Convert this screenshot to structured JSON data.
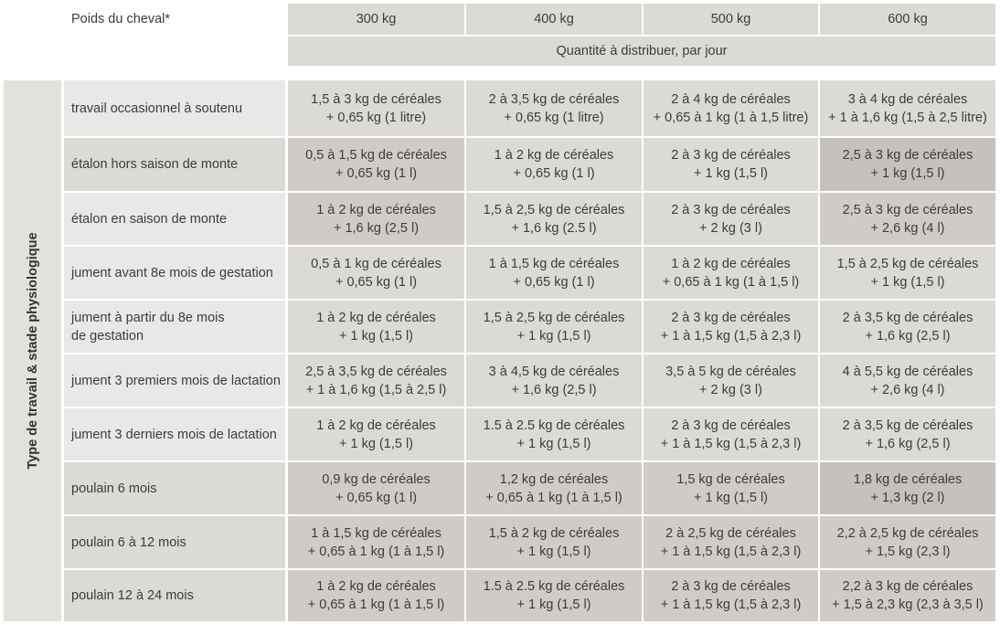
{
  "header": {
    "weight_label": "Poids du cheval*",
    "weights": [
      "300 kg",
      "400 kg",
      "500 kg",
      "600 kg"
    ],
    "quantity_label": "Quantité à distribuer, par jour"
  },
  "sidebar_label": "Type de travail & stade physiologique",
  "rows": [
    {
      "label": "travail occasionnel à soutenu",
      "cells": [
        {
          "l1": "1,5 à 3 kg de céréales",
          "l2": "+ 0,65 kg (1 litre)"
        },
        {
          "l1": "2 à 3,5 kg de céréales",
          "l2": "+ 0,65 kg (1 litre)"
        },
        {
          "l1": "2 à 4 kg de céréales",
          "l2": "+ 0,65 à 1 kg (1 à 1,5 litre)"
        },
        {
          "l1": "3 à 4 kg de céréales",
          "l2": "+ 1 à 1,6 kg (1,5 à 2,5 litre)"
        }
      ]
    },
    {
      "label": "étalon hors saison de monte",
      "cells": [
        {
          "l1": "0,5 à 1,5 kg de céréales",
          "l2": "+ 0,65 kg (1 l)"
        },
        {
          "l1": "1 à 2 kg de céréales",
          "l2": "+ 0,65 kg (1 l)"
        },
        {
          "l1": "2 à 3 kg de céréales",
          "l2": "+ 1 kg (1,5 l)"
        },
        {
          "l1": "2,5 à 3 kg de céréales",
          "l2": "+ 1 kg (1,5 l)"
        }
      ]
    },
    {
      "label": "étalon en saison de monte",
      "cells": [
        {
          "l1": "1 à 2 kg de céréales",
          "l2": "+ 1,6 kg (2,5 l)"
        },
        {
          "l1": "1,5 à 2,5 kg de céréales",
          "l2": "+ 1,6 kg (2.5 l)"
        },
        {
          "l1": "2 à 3 kg de céréales",
          "l2": "+ 2 kg (3 l)"
        },
        {
          "l1": "2,5 à 3 kg de céréales",
          "l2": "+ 2,6 kg (4 l)"
        }
      ]
    },
    {
      "label": "jument avant 8e mois de gestation",
      "cells": [
        {
          "l1": "0,5 à 1 kg de céréales",
          "l2": "+ 0,65 kg (1 l)"
        },
        {
          "l1": "1 à 1,5 kg de céréales",
          "l2": "+ 0,65 kg (1 l)"
        },
        {
          "l1": "1 à 2 kg de céréales",
          "l2": "+ 0,65 à 1 kg (1 à 1,5 l)"
        },
        {
          "l1": "1,5 à 2,5 kg de céréales",
          "l2": "+ 1 kg (1,5 l)"
        }
      ]
    },
    {
      "label": "jument à partir du 8e mois",
      "label2": "de gestation",
      "cells": [
        {
          "l1": "1 à 2 kg de céréales",
          "l2": "+ 1 kg (1,5 l)"
        },
        {
          "l1": "1,5 à 2,5 kg de céréales",
          "l2": "+ 1 kg (1,5 l)"
        },
        {
          "l1": "2 à 3 kg de céréales",
          "l2": "+ 1 à 1,5 kg (1,5 à 2,3 l)"
        },
        {
          "l1": "2 à 3,5 kg de céréales",
          "l2": "+ 1,6 kg (2,5 l)"
        }
      ]
    },
    {
      "label": "jument 3 premiers mois de lactation",
      "cells": [
        {
          "l1": "2,5 à 3,5 kg de céréales",
          "l2": "+ 1 à 1,6 kg (1,5 à 2,5 l)"
        },
        {
          "l1": "3 à 4,5 kg de céréales",
          "l2": "+ 1,6 kg (2,5 l)"
        },
        {
          "l1": "3,5 à 5 kg de céréales",
          "l2": "+ 2 kg (3 l)"
        },
        {
          "l1": "4 à 5,5 kg de céréales",
          "l2": "+ 2,6 kg (4 l)"
        }
      ]
    },
    {
      "label": "jument 3 derniers mois de lactation",
      "cells": [
        {
          "l1": "1 à 2 kg de céréales",
          "l2": "+ 1 kg (1,5 l)"
        },
        {
          "l1": "1.5 à 2.5 kg de céréales",
          "l2": "+ 1 kg (1,5 l)"
        },
        {
          "l1": "2 à 3 kg de céréales",
          "l2": "+ 1 à 1,5 kg (1,5 à 2,3 l)"
        },
        {
          "l1": "2 à 3,5 kg de céréales",
          "l2": "+ 1,6 kg (2,5 l)"
        }
      ]
    },
    {
      "label": "poulain 6 mois",
      "cells": [
        {
          "l1": "0,9 kg de céréales",
          "l2": "+ 0,65 kg (1 l)"
        },
        {
          "l1": "1,2 kg de céréales",
          "l2": "+ 0,65 à 1 kg (1 à 1,5 l)"
        },
        {
          "l1": "1,5 kg de céréales",
          "l2": "+ 1 kg (1,5 l)"
        },
        {
          "l1": "1,8 kg de céréales",
          "l2": "+ 1,3 kg (2 l)"
        }
      ]
    },
    {
      "label": "poulain 6 à 12 mois",
      "cells": [
        {
          "l1": "1 à 1,5 kg de céréales",
          "l2": "+ 0,65 à 1 kg (1 à 1,5 l)"
        },
        {
          "l1": "1,5 à 2 kg de céréales",
          "l2": "+ 1 kg (1,5 l)"
        },
        {
          "l1": "2 à 2,5 kg de céréales",
          "l2": "+ 1 à 1,5 kg (1,5 à 2,3 l)"
        },
        {
          "l1": "2,2 à 2,5 kg de céréales",
          "l2": "+ 1,5 kg (2,3 l)"
        }
      ]
    },
    {
      "label": "poulain 12 à 24 mois",
      "cells": [
        {
          "l1": "1 à 2 kg de céréales",
          "l2": "+ 0,65 à 1 kg (1 à 1,5 l)"
        },
        {
          "l1": "1.5 à 2.5 kg de céréales",
          "l2": "+ 1 kg (1,5 l)"
        },
        {
          "l1": "2 à 3 kg de céréales",
          "l2": "+ 1 à 1,5 kg (1,5 à 2,3 l)"
        },
        {
          "l1": "2,2 à 3 kg de céréales",
          "l2": "+ 1,5 à 2,3 kg (2,3 à 3,5 l)"
        }
      ]
    }
  ]
}
